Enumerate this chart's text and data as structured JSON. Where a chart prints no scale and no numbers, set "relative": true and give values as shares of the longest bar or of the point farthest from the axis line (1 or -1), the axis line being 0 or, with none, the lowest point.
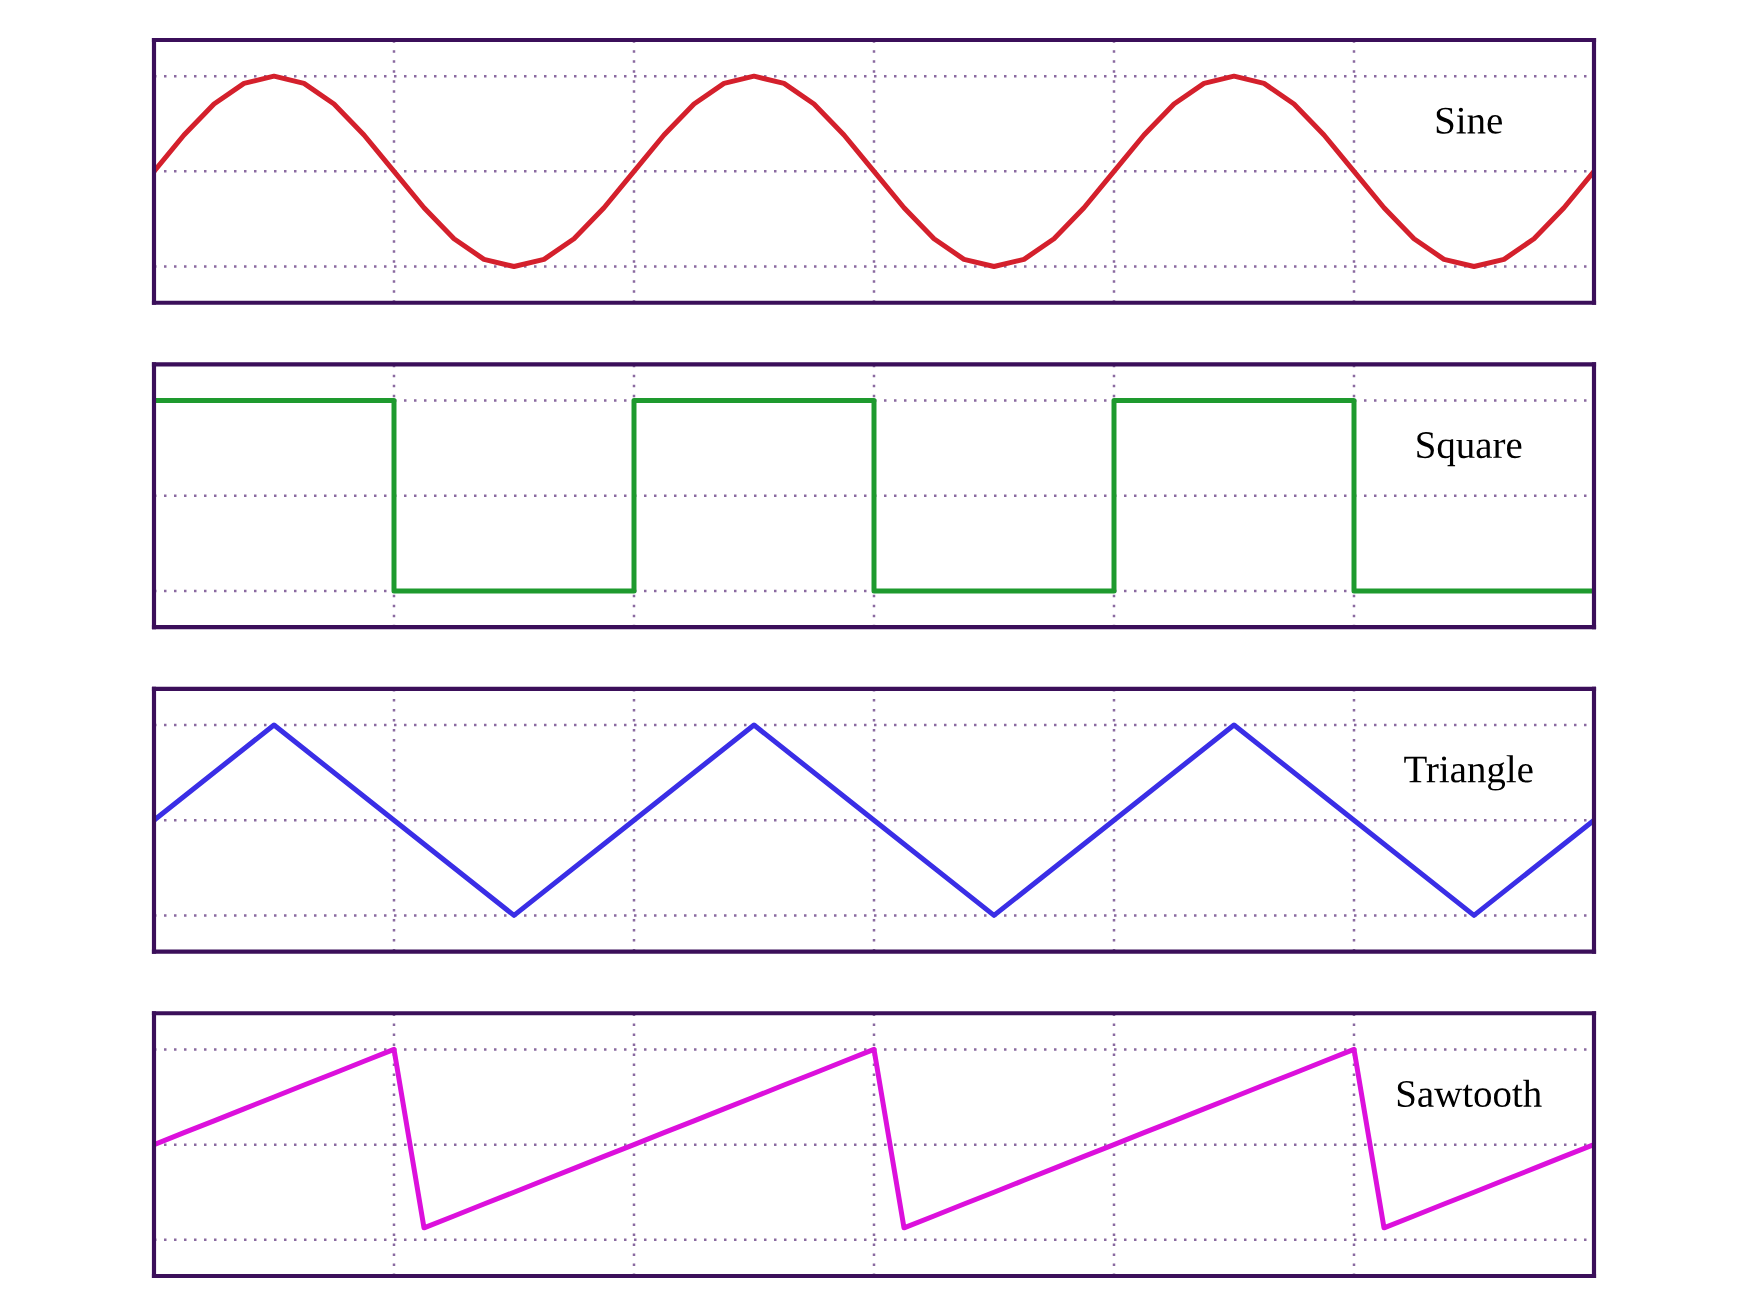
{
  "chart_data": [
    {
      "type": "line",
      "title": "Sine",
      "relative": true,
      "grid": true,
      "categories": [
        null,
        null,
        null,
        null,
        null,
        null,
        null,
        null,
        null,
        null,
        null,
        null,
        null,
        null,
        null,
        null,
        null,
        null,
        null,
        null,
        null,
        null,
        null,
        null,
        null,
        null,
        null,
        null,
        null,
        null,
        null,
        null,
        null,
        null,
        null,
        null,
        null,
        null,
        null,
        null,
        null,
        null,
        null,
        null,
        null,
        null,
        null,
        null,
        null
      ],
      "series": [
        {
          "color": "#d4202c",
          "values": [
            0.5,
            0.691,
            0.854,
            0.962,
            1,
            0.962,
            0.854,
            0.691,
            0.5,
            0.309,
            0.146,
            0.038,
            0,
            0.038,
            0.146,
            0.309,
            0.5,
            0.691,
            0.854,
            0.962,
            1,
            0.962,
            0.854,
            0.691,
            0.5,
            0.309,
            0.146,
            0.038,
            0,
            0.038,
            0.146,
            0.309,
            0.5,
            0.691,
            0.854,
            0.962,
            1,
            0.962,
            0.854,
            0.691,
            0.5,
            0.309,
            0.146,
            0.038,
            0,
            0.038,
            0.146,
            0.309,
            0.5
          ]
        }
      ]
    },
    {
      "type": "step",
      "title": "Square",
      "relative": true,
      "grid": true,
      "categories": [
        null,
        null,
        null,
        null,
        null,
        null,
        null
      ],
      "series": [
        {
          "color": "#1e9a2e",
          "values": [
            1,
            0,
            1,
            0,
            1,
            0,
            0
          ]
        }
      ]
    },
    {
      "type": "line",
      "title": "Triangle",
      "relative": true,
      "grid": true,
      "categories": [
        null,
        null,
        null,
        null,
        null,
        null,
        null,
        null,
        null,
        null,
        null,
        null,
        null
      ],
      "series": [
        {
          "color": "#3a2ee6",
          "values": [
            0.5,
            1,
            0.5,
            0,
            0.5,
            1,
            0.5,
            0,
            0.5,
            1,
            0.5,
            0,
            0.5
          ]
        }
      ]
    },
    {
      "type": "line",
      "title": "Sawtooth",
      "relative": true,
      "grid": true,
      "categories": [
        null,
        null,
        null,
        null,
        null,
        null,
        null,
        null,
        null,
        null,
        null,
        null,
        null,
        null,
        null,
        null,
        null,
        null,
        null,
        null,
        null,
        null,
        null,
        null,
        null,
        null,
        null,
        null,
        null,
        null,
        null,
        null,
        null,
        null,
        null,
        null,
        null,
        null,
        null,
        null,
        null,
        null,
        null,
        null,
        null,
        null,
        null,
        null,
        null
      ],
      "series": [
        {
          "color": "#dc10dc",
          "values": [
            0.5,
            0.563,
            0.625,
            0.688,
            0.75,
            0.813,
            0.875,
            0.938,
            1,
            0.063,
            0.125,
            0.188,
            0.25,
            0.313,
            0.375,
            0.438,
            0.5,
            0.563,
            0.625,
            0.688,
            0.75,
            0.813,
            0.875,
            0.938,
            1,
            0.063,
            0.125,
            0.188,
            0.25,
            0.313,
            0.375,
            0.438,
            0.5,
            0.563,
            0.625,
            0.688,
            0.75,
            0.813,
            0.875,
            0.938,
            1,
            0.063,
            0.125,
            0.188,
            0.25,
            0.313,
            0.375,
            0.438,
            0.5
          ]
        }
      ]
    }
  ]
}
